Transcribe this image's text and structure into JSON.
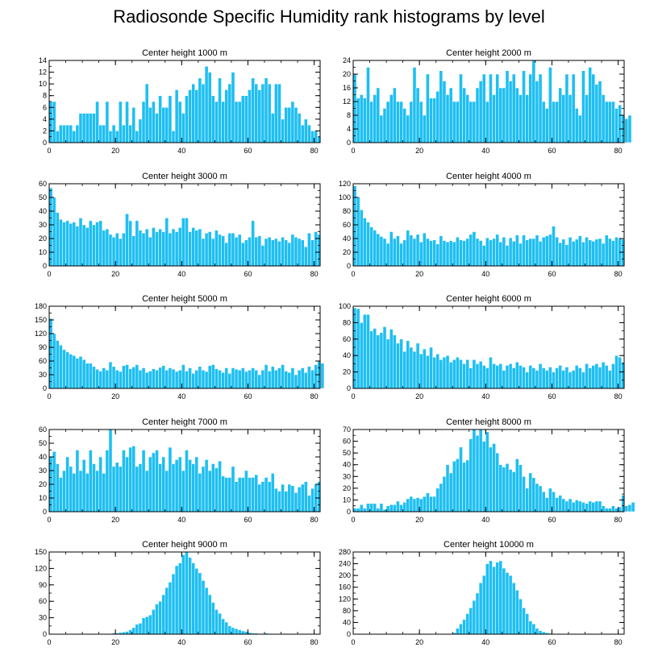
{
  "title": "Radiosonde Specific Humidity rank histograms by level",
  "colors": {
    "bar": "#1ebff2",
    "bar_edge": "#ffffff",
    "axis": "#000000"
  },
  "chart_data": [
    {
      "type": "bar",
      "title": "Center height 1000 m",
      "x": {
        "min": 0,
        "max": 80,
        "ticks": [
          0,
          20,
          40,
          60,
          80
        ]
      },
      "ylim": [
        0,
        14
      ],
      "yticks": [
        0,
        2,
        4,
        6,
        8,
        10,
        12,
        14
      ],
      "values": [
        7,
        7,
        2,
        3,
        3,
        3,
        3,
        2,
        3,
        5,
        5,
        5,
        5,
        5,
        7,
        3,
        3,
        7,
        2,
        3,
        2,
        7,
        3,
        7,
        3,
        6,
        2,
        4,
        7,
        10,
        6,
        7,
        5,
        8,
        6,
        6,
        8,
        2,
        9,
        7,
        5,
        8,
        9,
        10,
        9,
        11,
        10,
        13,
        12,
        8,
        7,
        11,
        7,
        9,
        10,
        12,
        7,
        7,
        8,
        8,
        9,
        11,
        10,
        9,
        10,
        11,
        10,
        5,
        10,
        10,
        4,
        6,
        6,
        7,
        6,
        5,
        3,
        4,
        3,
        2,
        2,
        1
      ]
    },
    {
      "type": "bar",
      "title": "Center height 2000 m",
      "x": {
        "min": 0,
        "max": 80,
        "ticks": [
          0,
          20,
          40,
          60,
          80
        ]
      },
      "ylim": [
        0,
        24
      ],
      "yticks": [
        0,
        4,
        8,
        12,
        16,
        20,
        24
      ],
      "values": [
        20,
        13,
        14,
        13,
        22,
        12,
        14,
        16,
        8,
        10,
        12,
        14,
        16,
        12,
        12,
        10,
        8,
        12,
        22,
        16,
        12,
        8,
        20,
        13,
        13,
        15,
        21,
        18,
        14,
        16,
        12,
        12,
        20,
        16,
        14,
        12,
        12,
        16,
        18,
        20,
        12,
        20,
        14,
        20,
        16,
        16,
        21,
        18,
        20,
        16,
        14,
        21,
        14,
        20,
        24,
        18,
        20,
        12,
        10,
        22,
        12,
        12,
        16,
        14,
        20,
        14,
        20,
        10,
        8,
        21,
        14,
        22,
        20,
        17,
        18,
        14,
        12,
        12,
        12,
        10,
        11,
        8,
        7,
        8
      ]
    },
    {
      "type": "bar",
      "title": "Center height 3000 m",
      "x": {
        "min": 0,
        "max": 80,
        "ticks": [
          0,
          20,
          40,
          60,
          80
        ]
      },
      "ylim": [
        0,
        60
      ],
      "yticks": [
        0,
        10,
        20,
        30,
        40,
        50,
        60
      ],
      "values": [
        57,
        50,
        39,
        34,
        32,
        33,
        31,
        32,
        29,
        35,
        30,
        28,
        33,
        30,
        32,
        33,
        26,
        27,
        23,
        21,
        24,
        20,
        24,
        38,
        33,
        22,
        33,
        26,
        24,
        27,
        21,
        28,
        25,
        27,
        25,
        35,
        24,
        27,
        25,
        28,
        35,
        35,
        25,
        28,
        26,
        27,
        20,
        24,
        25,
        20,
        26,
        23,
        22,
        17,
        24,
        24,
        21,
        23,
        17,
        19,
        21,
        33,
        21,
        22,
        15,
        20,
        21,
        19,
        20,
        18,
        21,
        19,
        17,
        23,
        21,
        20,
        19,
        14,
        24,
        19,
        25,
        23
      ]
    },
    {
      "type": "bar",
      "title": "Center height 4000 m",
      "x": {
        "min": 0,
        "max": 80,
        "ticks": [
          0,
          20,
          40,
          60,
          80
        ]
      },
      "ylim": [
        0,
        120
      ],
      "yticks": [
        0,
        20,
        40,
        60,
        80,
        100,
        120
      ],
      "values": [
        117,
        101,
        82,
        70,
        64,
        57,
        52,
        47,
        43,
        40,
        33,
        50,
        40,
        44,
        33,
        38,
        52,
        45,
        40,
        46,
        35,
        48,
        40,
        37,
        38,
        32,
        44,
        37,
        35,
        37,
        35,
        42,
        38,
        37,
        40,
        46,
        50,
        40,
        37,
        30,
        41,
        38,
        40,
        46,
        35,
        42,
        30,
        41,
        36,
        45,
        33,
        45,
        38,
        40,
        40,
        45,
        36,
        42,
        44,
        46,
        58,
        42,
        34,
        39,
        31,
        42,
        36,
        39,
        44,
        35,
        42,
        38,
        36,
        39,
        40,
        33,
        45,
        40,
        37,
        42,
        40,
        39
      ]
    },
    {
      "type": "bar",
      "title": "Center height 5000 m",
      "x": {
        "min": 0,
        "max": 80,
        "ticks": [
          0,
          20,
          40,
          60,
          80
        ]
      },
      "ylim": [
        0,
        180
      ],
      "yticks": [
        0,
        30,
        60,
        90,
        120,
        150,
        180
      ],
      "values": [
        153,
        120,
        105,
        95,
        85,
        80,
        75,
        72,
        66,
        70,
        63,
        55,
        55,
        48,
        42,
        38,
        45,
        40,
        58,
        48,
        40,
        37,
        50,
        52,
        43,
        47,
        52,
        40,
        45,
        35,
        38,
        43,
        40,
        46,
        50,
        40,
        45,
        42,
        37,
        40,
        52,
        38,
        45,
        33,
        40,
        48,
        40,
        37,
        50,
        52,
        43,
        40,
        35,
        45,
        33,
        45,
        42,
        40,
        45,
        37,
        40,
        45,
        40,
        30,
        40,
        52,
        38,
        48,
        40,
        45,
        52,
        38,
        35,
        45,
        30,
        40,
        45,
        35,
        48,
        40,
        52,
        60,
        55
      ]
    },
    {
      "type": "bar",
      "title": "Center height 6000 m",
      "x": {
        "min": 0,
        "max": 80,
        "ticks": [
          0,
          20,
          40,
          60,
          80
        ]
      },
      "ylim": [
        0,
        100
      ],
      "yticks": [
        0,
        20,
        40,
        60,
        80,
        100
      ],
      "values": [
        98,
        97,
        80,
        90,
        90,
        70,
        73,
        65,
        68,
        75,
        60,
        72,
        65,
        55,
        60,
        45,
        58,
        50,
        45,
        55,
        42,
        48,
        40,
        50,
        38,
        42,
        35,
        38,
        40,
        32,
        35,
        38,
        35,
        30,
        35,
        25,
        35,
        30,
        33,
        28,
        25,
        38,
        30,
        28,
        30,
        22,
        28,
        30,
        25,
        32,
        28,
        26,
        20,
        28,
        25,
        22,
        30,
        25,
        22,
        26,
        20,
        25,
        28,
        22,
        26,
        20,
        22,
        28,
        25,
        20,
        30,
        25,
        28,
        30,
        26,
        32,
        28,
        22,
        30,
        40,
        38,
        32
      ]
    },
    {
      "type": "bar",
      "title": "Center height 7000 m",
      "x": {
        "min": 0,
        "max": 80,
        "ticks": [
          0,
          20,
          40,
          60,
          80
        ]
      },
      "ylim": [
        0,
        60
      ],
      "yticks": [
        0,
        10,
        20,
        30,
        40,
        50,
        60
      ],
      "values": [
        40,
        44,
        35,
        25,
        30,
        40,
        33,
        28,
        45,
        30,
        38,
        28,
        45,
        35,
        30,
        40,
        28,
        45,
        60,
        33,
        36,
        33,
        45,
        40,
        47,
        48,
        33,
        35,
        45,
        30,
        40,
        43,
        45,
        35,
        40,
        30,
        47,
        35,
        38,
        40,
        30,
        45,
        38,
        35,
        40,
        28,
        33,
        38,
        30,
        35,
        32,
        37,
        26,
        25,
        25,
        33,
        22,
        25,
        25,
        30,
        25,
        25,
        27,
        20,
        22,
        25,
        22,
        28,
        17,
        15,
        20,
        15,
        20,
        19,
        14,
        18,
        20,
        22,
        12,
        17,
        20,
        22
      ]
    },
    {
      "type": "bar",
      "title": "Center height 8000 m",
      "x": {
        "min": 0,
        "max": 80,
        "ticks": [
          0,
          20,
          40,
          60,
          80
        ]
      },
      "ylim": [
        0,
        70
      ],
      "yticks": [
        0,
        10,
        20,
        30,
        40,
        50,
        60,
        70
      ],
      "values": [
        3,
        3,
        6,
        3,
        7,
        7,
        7,
        3,
        7,
        2,
        5,
        6,
        6,
        9,
        6,
        8,
        11,
        13,
        11,
        12,
        11,
        13,
        16,
        13,
        13,
        20,
        24,
        30,
        40,
        33,
        43,
        45,
        55,
        42,
        44,
        62,
        70,
        65,
        70,
        60,
        68,
        55,
        58,
        50,
        40,
        38,
        41,
        36,
        34,
        45,
        40,
        30,
        20,
        33,
        29,
        24,
        22,
        17,
        12,
        20,
        17,
        12,
        14,
        11,
        9,
        11,
        8,
        10,
        9,
        8,
        7,
        9,
        8,
        9,
        9,
        5,
        3,
        3,
        5,
        3,
        4,
        14,
        5,
        6,
        8
      ]
    },
    {
      "type": "bar",
      "title": "Center height 9000 m",
      "x": {
        "min": 0,
        "max": 80,
        "ticks": [
          0,
          20,
          40,
          60,
          80
        ]
      },
      "ylim": [
        0,
        150
      ],
      "yticks": [
        0,
        30,
        60,
        90,
        120,
        150
      ],
      "values": [
        0,
        0,
        0,
        0,
        0,
        0,
        0,
        0,
        0,
        0,
        0,
        0,
        0,
        0,
        0,
        0,
        0,
        0,
        1,
        2,
        2,
        3,
        4,
        5,
        8,
        12,
        18,
        20,
        30,
        32,
        35,
        45,
        55,
        60,
        72,
        85,
        95,
        110,
        125,
        130,
        145,
        150,
        140,
        130,
        120,
        112,
        98,
        85,
        72,
        58,
        45,
        38,
        28,
        22,
        15,
        12,
        10,
        8,
        6,
        5,
        3,
        2,
        2,
        1,
        1,
        2,
        1,
        0,
        0,
        0,
        0,
        1,
        0,
        0,
        0,
        0,
        0,
        0,
        0,
        0,
        0
      ]
    },
    {
      "type": "bar",
      "title": "Center height 10000 m",
      "x": {
        "min": 0,
        "max": 80,
        "ticks": [
          0,
          20,
          40,
          60,
          80
        ]
      },
      "ylim": [
        0,
        280
      ],
      "yticks": [
        0,
        40,
        80,
        120,
        160,
        200,
        240,
        280
      ],
      "values": [
        0,
        0,
        0,
        0,
        0,
        0,
        0,
        0,
        0,
        0,
        0,
        0,
        0,
        0,
        0,
        0,
        0,
        0,
        0,
        0,
        0,
        0,
        0,
        0,
        0,
        0,
        0,
        0,
        0,
        0,
        5,
        20,
        35,
        50,
        70,
        90,
        115,
        140,
        175,
        200,
        240,
        250,
        230,
        245,
        250,
        225,
        210,
        200,
        175,
        150,
        120,
        90,
        70,
        45,
        35,
        20,
        12,
        8,
        5,
        3,
        2,
        2,
        1,
        1,
        0,
        0,
        0,
        0,
        0,
        0,
        0,
        0,
        0,
        0,
        0,
        0,
        0,
        0,
        0,
        0,
        0
      ]
    }
  ]
}
